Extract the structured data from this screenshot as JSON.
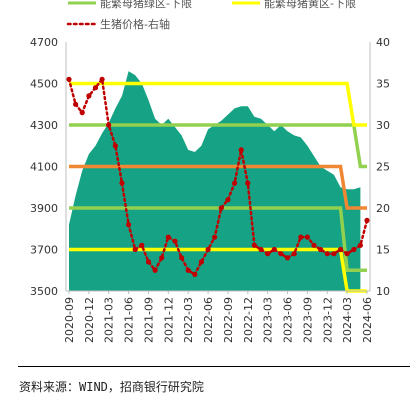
{
  "chart_data": {
    "type": "area",
    "y_left": {
      "min": 3500,
      "max": 4700,
      "ticks": [
        3500,
        3700,
        3900,
        4100,
        4300,
        4500,
        4700
      ]
    },
    "y_right": {
      "min": 10,
      "max": 40,
      "ticks": [
        10,
        15,
        20,
        25,
        30,
        35,
        40
      ]
    },
    "x_ticks": [
      "2020-09",
      "2020-12",
      "2021-03",
      "2021-06",
      "2021-09",
      "2021-12",
      "2022-03",
      "2022-06",
      "2022-09",
      "2022-12",
      "2023-03",
      "2023-06",
      "2023-09",
      "2023-12",
      "2024-03",
      "2024-06"
    ],
    "grid": false,
    "legend_position": "top",
    "legend": {
      "green_line": "能繁母猪绿区-下限",
      "yellow_line": "能繁母猪黄区-下限",
      "hog_price": "生猪价格-右轴"
    },
    "series": [
      {
        "role": "sow_inventory_area",
        "axis": "left",
        "color": "#16a385",
        "points": [
          [
            "2020-09",
            3820
          ],
          [
            "2020-10",
            3960
          ],
          [
            "2020-11",
            4080
          ],
          [
            "2020-12",
            4160
          ],
          [
            "2021-01",
            4200
          ],
          [
            "2021-02",
            4260
          ],
          [
            "2021-03",
            4310
          ],
          [
            "2021-04",
            4380
          ],
          [
            "2021-05",
            4440
          ],
          [
            "2021-06",
            4560
          ],
          [
            "2021-07",
            4540
          ],
          [
            "2021-08",
            4500
          ],
          [
            "2021-09",
            4420
          ],
          [
            "2021-10",
            4330
          ],
          [
            "2021-11",
            4300
          ],
          [
            "2021-12",
            4330
          ],
          [
            "2022-01",
            4290
          ],
          [
            "2022-02",
            4250
          ],
          [
            "2022-03",
            4180
          ],
          [
            "2022-04",
            4170
          ],
          [
            "2022-05",
            4200
          ],
          [
            "2022-06",
            4280
          ],
          [
            "2022-07",
            4300
          ],
          [
            "2022-08",
            4320
          ],
          [
            "2022-09",
            4350
          ],
          [
            "2022-10",
            4380
          ],
          [
            "2022-11",
            4390
          ],
          [
            "2022-12",
            4390
          ],
          [
            "2023-01",
            4340
          ],
          [
            "2023-02",
            4330
          ],
          [
            "2023-03",
            4300
          ],
          [
            "2023-04",
            4270
          ],
          [
            "2023-05",
            4300
          ],
          [
            "2023-06",
            4270
          ],
          [
            "2023-07",
            4250
          ],
          [
            "2023-08",
            4240
          ],
          [
            "2023-09",
            4200
          ],
          [
            "2023-10",
            4150
          ],
          [
            "2023-11",
            4100
          ],
          [
            "2023-12",
            4080
          ],
          [
            "2024-01",
            4060
          ],
          [
            "2024-02",
            4000
          ],
          [
            "2024-03",
            3990
          ],
          [
            "2024-04",
            3990
          ],
          [
            "2024-05",
            4000
          ]
        ]
      },
      {
        "role": "orange_line",
        "axis": "left",
        "color": "#f08733",
        "points": [
          [
            "2020-09",
            4100
          ],
          [
            "2024-02",
            4100
          ],
          [
            "2024-03",
            3900
          ],
          [
            "2024-06",
            3900
          ]
        ]
      },
      {
        "role": "green_line",
        "axis": "left",
        "color": "#92d050",
        "points": [
          [
            "2020-09",
            4300
          ],
          [
            "2024-04",
            4300
          ],
          [
            "2024-05",
            4100
          ],
          [
            "2024-06",
            4100
          ]
        ]
      },
      {
        "role": "green_line",
        "axis": "left",
        "color": "#92d050",
        "points": [
          [
            "2020-09",
            3900
          ],
          [
            "2024-02",
            3900
          ],
          [
            "2024-03",
            3600
          ],
          [
            "2024-06",
            3600
          ]
        ]
      },
      {
        "role": "yellow_line",
        "axis": "left",
        "color": "#ffff00",
        "points": [
          [
            "2020-09",
            4500
          ],
          [
            "2024-03",
            4500
          ],
          [
            "2024-04",
            4300
          ],
          [
            "2024-06",
            4300
          ]
        ]
      },
      {
        "role": "yellow_line",
        "axis": "left",
        "color": "#ffff00",
        "points": [
          [
            "2020-09",
            3700
          ],
          [
            "2024-02",
            3700
          ],
          [
            "2024-03",
            3500
          ],
          [
            "2024-06",
            3500
          ]
        ]
      },
      {
        "role": "hog_price",
        "axis": "right",
        "color": "#c00000",
        "points": [
          [
            "2020-09",
            35.5
          ],
          [
            "2020-10",
            32.5
          ],
          [
            "2020-11",
            31.5
          ],
          [
            "2020-12",
            33.5
          ],
          [
            "2021-01",
            34.5
          ],
          [
            "2021-02",
            35.5
          ],
          [
            "2021-03",
            30
          ],
          [
            "2021-04",
            27.5
          ],
          [
            "2021-05",
            23
          ],
          [
            "2021-06",
            18
          ],
          [
            "2021-07",
            15
          ],
          [
            "2021-08",
            15.5
          ],
          [
            "2021-09",
            13.5
          ],
          [
            "2021-10",
            12.5
          ],
          [
            "2021-11",
            14
          ],
          [
            "2021-12",
            16.5
          ],
          [
            "2022-01",
            16
          ],
          [
            "2022-02",
            14
          ],
          [
            "2022-03",
            12.5
          ],
          [
            "2022-04",
            12
          ],
          [
            "2022-05",
            13.5
          ],
          [
            "2022-06",
            15
          ],
          [
            "2022-07",
            16.5
          ],
          [
            "2022-08",
            20
          ],
          [
            "2022-09",
            21
          ],
          [
            "2022-10",
            23
          ],
          [
            "2022-11",
            27
          ],
          [
            "2022-12",
            23
          ],
          [
            "2023-01",
            15.5
          ],
          [
            "2023-02",
            15
          ],
          [
            "2023-03",
            14.5
          ],
          [
            "2023-04",
            15
          ],
          [
            "2023-05",
            14.5
          ],
          [
            "2023-06",
            14
          ],
          [
            "2023-07",
            14.5
          ],
          [
            "2023-08",
            16.5
          ],
          [
            "2023-09",
            16.5
          ],
          [
            "2023-10",
            15.5
          ],
          [
            "2023-11",
            15
          ],
          [
            "2023-12",
            14.5
          ],
          [
            "2024-01",
            14.5
          ],
          [
            "2024-02",
            15
          ],
          [
            "2024-03",
            14.5
          ],
          [
            "2024-04",
            15
          ],
          [
            "2024-05",
            15.5
          ],
          [
            "2024-06",
            18.5
          ]
        ]
      }
    ]
  },
  "footer": {
    "source": "资料来源：WIND，招商银行研究院"
  }
}
